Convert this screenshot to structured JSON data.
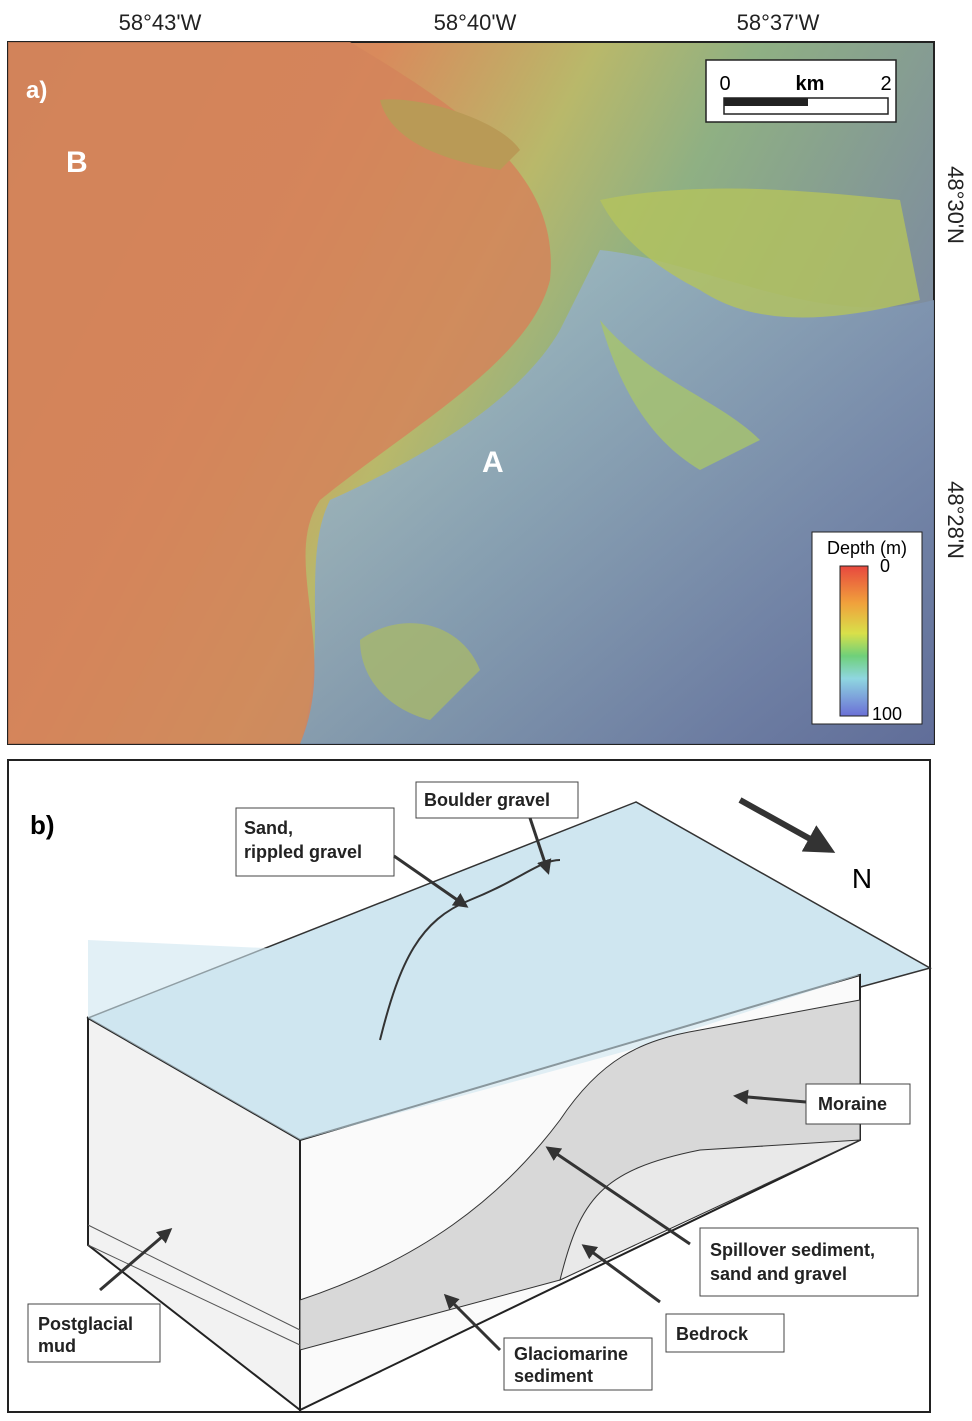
{
  "panel_a": {
    "label": "a)",
    "longitudes": [
      "58°43'W",
      "58°40'W",
      "58°37'W"
    ],
    "latitudes": [
      "48°30'N",
      "48°28'N"
    ],
    "scale_bar": {
      "start": "0",
      "unit": "km",
      "end": "2"
    },
    "depth_legend": {
      "title": "Depth (m)",
      "min": 0,
      "max": 100
    },
    "sites": [
      "B",
      "A"
    ]
  },
  "panel_b": {
    "label": "b)",
    "north": "N",
    "callouts": [
      {
        "lines": [
          "Boulder gravel"
        ]
      },
      {
        "lines": [
          "Sand,",
          "rippled gravel"
        ]
      },
      {
        "lines": [
          "Moraine"
        ]
      },
      {
        "lines": [
          "Spillover sediment,",
          "sand and gravel"
        ]
      },
      {
        "lines": [
          "Bedrock"
        ]
      },
      {
        "lines": [
          "Glaciomarine",
          "sediment"
        ]
      },
      {
        "lines": [
          "Postglacial",
          "mud"
        ]
      }
    ]
  }
}
